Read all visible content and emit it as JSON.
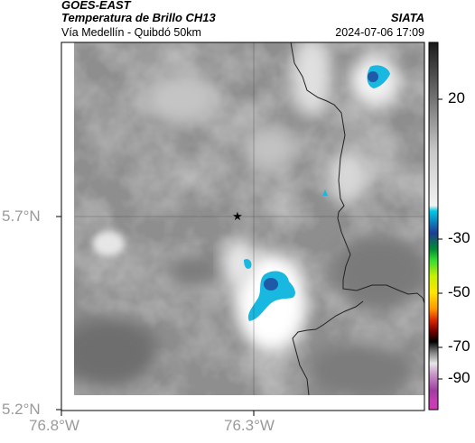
{
  "header": {
    "satellite": "GOES-EAST",
    "product": "Temperatura de Brillo CH13",
    "region": "Vía Medellín - Quibdó 50km",
    "org": "SIATA",
    "datetime": "2024-07-06 17:09"
  },
  "map": {
    "lat_ticks": [
      "5.7°N",
      "5.2°N"
    ],
    "lon_ticks": [
      "76.8°W",
      "76.3°W"
    ],
    "marker_icon": "star-icon",
    "bright_cloud_color": "#ffffff",
    "cold_cloud_colors": [
      "#00b4e6",
      "#1e5aa8"
    ]
  },
  "colorbar": {
    "labels": [
      "20",
      "-30",
      "-50",
      "-70",
      "-90"
    ],
    "stops": [
      {
        "v": 40,
        "c": "#1a1a1a"
      },
      {
        "v": 20,
        "c": "#707070"
      },
      {
        "v": 0,
        "c": "#c8c8c8"
      },
      {
        "v": -20,
        "c": "#f2f2f2"
      },
      {
        "v": -22,
        "c": "#00c8e6"
      },
      {
        "v": -30,
        "c": "#1e3c96"
      },
      {
        "v": -36,
        "c": "#008c32"
      },
      {
        "v": -40,
        "c": "#32dc32"
      },
      {
        "v": -46,
        "c": "#c8f000"
      },
      {
        "v": -52,
        "c": "#ffe600"
      },
      {
        "v": -58,
        "c": "#ff9600"
      },
      {
        "v": -62,
        "c": "#dc2800"
      },
      {
        "v": -66,
        "c": "#780000"
      },
      {
        "v": -70,
        "c": "#000000"
      },
      {
        "v": -74,
        "c": "#808080"
      },
      {
        "v": -78,
        "c": "#e6e6e6"
      },
      {
        "v": -82,
        "c": "#c896c8"
      },
      {
        "v": -88,
        "c": "#a03ca0"
      },
      {
        "v": -92,
        "c": "#c83cb4"
      }
    ]
  }
}
